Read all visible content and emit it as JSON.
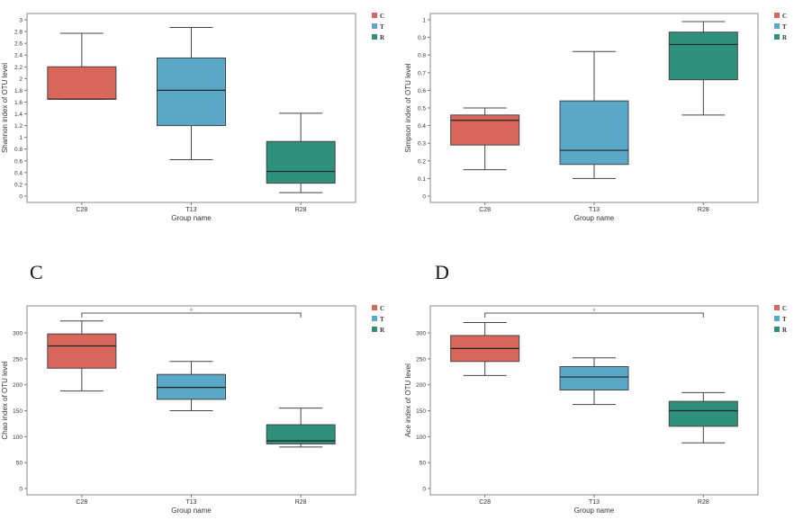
{
  "panel_letters": [
    "C",
    "D"
  ],
  "colors": {
    "C": "#d9665a",
    "T": "#5aa8c8",
    "R": "#2e8f7a"
  },
  "chart_data": [
    {
      "type": "box",
      "title": "",
      "xlabel": "Group name",
      "ylabel": "Shannon index of OTU level",
      "categories": [
        "C28",
        "T13",
        "R28"
      ],
      "legend": [
        "C",
        "T",
        "R"
      ],
      "legend_position": "top-right",
      "ylim": [
        0,
        3
      ],
      "yticks": [
        0,
        0.2,
        0.4,
        0.6,
        0.8,
        1,
        1.2,
        1.4,
        1.6,
        1.8,
        2,
        2.2,
        2.4,
        2.6,
        2.8,
        3
      ],
      "ytick_labels": [
        "0",
        "0.2",
        "0.4",
        "0.6",
        "0.8",
        "1",
        "1.2",
        "1.4",
        "1.6",
        "1.8",
        "2",
        "2.2",
        "2.4",
        "2.6",
        "2.8",
        "3"
      ],
      "boxes": [
        {
          "group": "C",
          "min": 1.65,
          "q1": 1.65,
          "median": 1.65,
          "q3": 2.2,
          "max": 2.77
        },
        {
          "group": "T",
          "min": 0.62,
          "q1": 1.2,
          "median": 1.8,
          "q3": 2.35,
          "max": 2.87
        },
        {
          "group": "R",
          "min": 0.06,
          "q1": 0.22,
          "median": 0.42,
          "q3": 0.93,
          "max": 1.41
        }
      ],
      "significance": ""
    },
    {
      "type": "box",
      "title": "",
      "xlabel": "Group name",
      "ylabel": "Simpson index of OTU level",
      "categories": [
        "C28",
        "T13",
        "R28"
      ],
      "legend": [
        "C",
        "T",
        "R"
      ],
      "legend_position": "top-right",
      "ylim": [
        0,
        1
      ],
      "yticks": [
        0,
        0.1,
        0.2,
        0.3,
        0.4,
        0.5,
        0.6,
        0.7,
        0.8,
        0.9,
        1
      ],
      "ytick_labels": [
        "0",
        "0.1",
        "0.2",
        "0.3",
        "0.4",
        "0.5",
        "0.6",
        "0.7",
        "0.8",
        "0.9",
        "1"
      ],
      "boxes": [
        {
          "group": "C",
          "min": 0.15,
          "q1": 0.29,
          "median": 0.43,
          "q3": 0.46,
          "max": 0.5
        },
        {
          "group": "T",
          "min": 0.1,
          "q1": 0.18,
          "median": 0.26,
          "q3": 0.54,
          "max": 0.82
        },
        {
          "group": "R",
          "min": 0.46,
          "q1": 0.66,
          "median": 0.86,
          "q3": 0.93,
          "max": 0.99
        }
      ],
      "significance": ""
    },
    {
      "type": "box",
      "title": "",
      "xlabel": "Group name",
      "ylabel": "Chao index of OTU level",
      "categories": [
        "C28",
        "T13",
        "R28"
      ],
      "legend": [
        "C",
        "T",
        "R"
      ],
      "legend_position": "top-right",
      "ylim": [
        0,
        340
      ],
      "yticks": [
        0,
        50,
        100,
        150,
        200,
        250,
        300
      ],
      "ytick_labels": [
        "0",
        "50",
        "100",
        "150",
        "200",
        "250",
        "300"
      ],
      "boxes": [
        {
          "group": "C",
          "min": 188,
          "q1": 232,
          "median": 275,
          "q3": 298,
          "max": 323
        },
        {
          "group": "T",
          "min": 150,
          "q1": 172,
          "median": 195,
          "q3": 220,
          "max": 245
        },
        {
          "group": "R",
          "min": 80,
          "q1": 86,
          "median": 92,
          "q3": 123,
          "max": 155
        }
      ],
      "significance": "*"
    },
    {
      "type": "box",
      "title": "",
      "xlabel": "Group name",
      "ylabel": "Ace index of OTU level",
      "categories": [
        "C28",
        "T13",
        "R28"
      ],
      "legend": [
        "C",
        "T",
        "R"
      ],
      "legend_position": "top-right",
      "ylim": [
        0,
        340
      ],
      "yticks": [
        0,
        50,
        100,
        150,
        200,
        250,
        300
      ],
      "ytick_labels": [
        "0",
        "50",
        "100",
        "150",
        "200",
        "250",
        "300"
      ],
      "boxes": [
        {
          "group": "C",
          "min": 218,
          "q1": 245,
          "median": 270,
          "q3": 295,
          "max": 320
        },
        {
          "group": "T",
          "min": 162,
          "q1": 190,
          "median": 215,
          "q3": 235,
          "max": 252
        },
        {
          "group": "R",
          "min": 88,
          "q1": 120,
          "median": 150,
          "q3": 168,
          "max": 185
        }
      ],
      "significance": "*"
    }
  ]
}
